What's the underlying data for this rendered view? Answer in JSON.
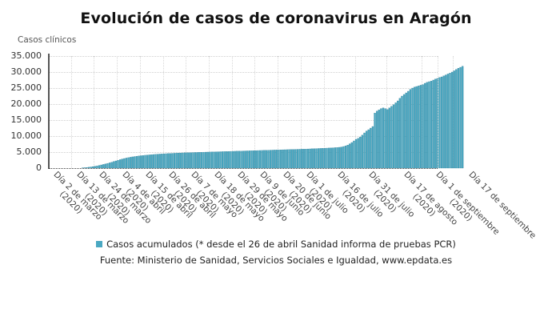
{
  "title": "Evolución de casos de coronavirus en Aragón",
  "y_axis_title": "Casos clínicos",
  "y_ticks": [
    "35.000",
    "30.000",
    "25.000",
    "20.000",
    "15.000",
    "10.000",
    "5.000",
    "0"
  ],
  "x_ticks": [
    {
      "line1": "Día 2 de marzo",
      "line2": "(2020)"
    },
    {
      "line1": "Día 13 de marzo",
      "line2": "(2020)"
    },
    {
      "line1": "Día 24 de marzo",
      "line2": "(2020)"
    },
    {
      "line1": "Día 4 de abril",
      "line2": "(2020)"
    },
    {
      "line1": "Día 15 de abril",
      "line2": "(2020)"
    },
    {
      "line1": "Día 26 de abril",
      "line2": "(2020)"
    },
    {
      "line1": "Día 7 de mayo",
      "line2": "(2020)"
    },
    {
      "line1": "Día 18 de mayo",
      "line2": "(2020)"
    },
    {
      "line1": "Día 29 de mayo",
      "line2": "(2020)"
    },
    {
      "line1": "Día 9 de junio",
      "line2": "(2020)"
    },
    {
      "line1": "Día 20 de junio",
      "line2": "(2020)"
    },
    {
      "line1": "Día 1 de julio",
      "line2": "(2020)"
    },
    {
      "line1": "Día 16 de julio",
      "line2": "(2020)"
    },
    {
      "line1": "Día 31 de julio",
      "line2": "(2020)"
    },
    {
      "line1": "Día 17 de agosto",
      "line2": "(2020)"
    },
    {
      "line1": "Día 1 de septiembre",
      "line2": "(2020)"
    },
    {
      "line1": "Día 17 de septiembre",
      "line2": ""
    }
  ],
  "legend": {
    "label": "Casos acumulados (* desde el 26 de abril Sanidad informa de pruebas PCR)",
    "color": "#4aa8c2"
  },
  "source": "Fuente: Ministerio de Sanidad, Servicios Sociales e Igualdad, www.epdata.es",
  "chart_data": {
    "type": "bar",
    "title": "Evolución de casos de coronavirus en Aragón",
    "xlabel": "",
    "ylabel": "Casos clínicos",
    "ylim": [
      0,
      35000
    ],
    "grid": true,
    "legend_position": "bottom",
    "x_tick_labels": [
      "Día 2 de marzo (2020)",
      "Día 13 de marzo (2020)",
      "Día 24 de marzo (2020)",
      "Día 4 de abril (2020)",
      "Día 15 de abril (2020)",
      "Día 26 de abril (2020)",
      "Día 7 de mayo (2020)",
      "Día 18 de mayo (2020)",
      "Día 29 de mayo (2020)",
      "Día 9 de junio (2020)",
      "Día 20 de junio (2020)",
      "Día 1 de julio (2020)",
      "Día 16 de julio (2020)",
      "Día 31 de julio (2020)",
      "Día 17 de agosto (2020)",
      "Día 1 de septiembre (2020)",
      "Día 17 de septiembre"
    ],
    "series": [
      {
        "name": "Casos acumulados (* desde el 26 de abril Sanidad informa de pruebas PCR)",
        "color": "#4aa8c2",
        "start_date": "2020-03-02",
        "step": "1 day",
        "values": [
          1,
          1,
          1,
          1,
          2,
          3,
          4,
          5,
          7,
          9,
          12,
          17,
          24,
          40,
          60,
          90,
          140,
          200,
          280,
          370,
          470,
          580,
          700,
          850,
          1000,
          1150,
          1300,
          1480,
          1660,
          1850,
          2050,
          2250,
          2450,
          2650,
          2850,
          3000,
          3150,
          3280,
          3400,
          3520,
          3620,
          3720,
          3800,
          3880,
          3950,
          4020,
          4080,
          4140,
          4200,
          4250,
          4300,
          4350,
          4390,
          4430,
          4470,
          4510,
          4550,
          4580,
          4610,
          4640,
          4670,
          4700,
          4730,
          4760,
          4790,
          4810,
          4830,
          4850,
          4870,
          4890,
          4910,
          4930,
          4950,
          4970,
          4990,
          5010,
          5030,
          5050,
          5070,
          5090,
          5110,
          5130,
          5150,
          5170,
          5190,
          5210,
          5230,
          5250,
          5270,
          5290,
          5310,
          5330,
          5350,
          5370,
          5390,
          5410,
          5430,
          5450,
          5470,
          5490,
          5510,
          5530,
          5550,
          5570,
          5590,
          5610,
          5630,
          5650,
          5670,
          5690,
          5710,
          5730,
          5750,
          5770,
          5790,
          5810,
          5830,
          5850,
          5870,
          5890,
          5910,
          5930,
          5950,
          5980,
          6010,
          6040,
          6070,
          6100,
          6130,
          6160,
          6190,
          6220,
          6250,
          6280,
          6310,
          6350,
          6400,
          6450,
          6500,
          6600,
          6750,
          6950,
          7200,
          7600,
          8000,
          8500,
          9000,
          9300,
          9700,
          10300,
          11000,
          11600,
          12000,
          12500,
          13000,
          17200,
          17800,
          18200,
          18600,
          18800,
          18600,
          18300,
          18800,
          19300,
          19800,
          20400,
          21000,
          21800,
          22500,
          23000,
          23500,
          24000,
          24600,
          25000,
          25300,
          25500,
          25700,
          25900,
          26100,
          26500,
          26800,
          27000,
          27200,
          27500,
          27800,
          28000,
          28300,
          28500,
          28800,
          29100,
          29400,
          29700,
          30000,
          30400,
          30800,
          31200,
          31500,
          31800
        ]
      }
    ]
  }
}
